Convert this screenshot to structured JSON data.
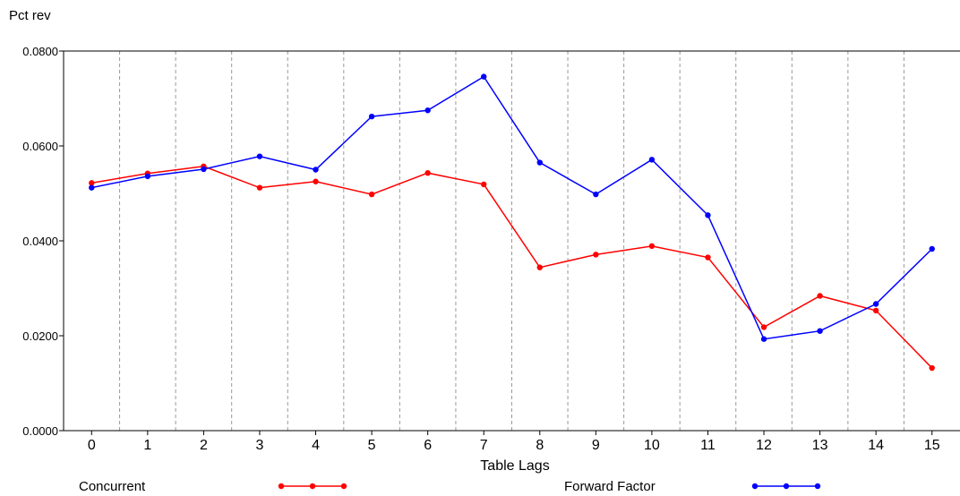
{
  "chart_data": {
    "type": "line",
    "title": "",
    "ylabel": "Pct rev",
    "xlabel": "Table Lags",
    "categories": [
      "0",
      "1",
      "2",
      "3",
      "4",
      "5",
      "6",
      "7",
      "8",
      "9",
      "10",
      "11",
      "12",
      "13",
      "14",
      "15"
    ],
    "ylim": [
      0,
      0.08
    ],
    "yticks": [
      "0.0000",
      "0.0200",
      "0.0400",
      "0.0600",
      "0.0800"
    ],
    "ytick_values": [
      0,
      0.02,
      0.04,
      0.06,
      0.08
    ],
    "grid": "vertical dashed",
    "legend_position": "bottom",
    "series": [
      {
        "name": "Concurrent",
        "color": "#ff0000",
        "values": [
          0.0522,
          0.0542,
          0.0557,
          0.0512,
          0.0525,
          0.0498,
          0.0543,
          0.0519,
          0.0344,
          0.0371,
          0.0389,
          0.0365,
          0.0218,
          0.0284,
          0.0253,
          0.0132
        ]
      },
      {
        "name": "Forward Factor",
        "color": "#0000ff",
        "values": [
          0.0512,
          0.0536,
          0.0551,
          0.0578,
          0.055,
          0.0662,
          0.0675,
          0.0746,
          0.0565,
          0.0498,
          0.0571,
          0.0454,
          0.0193,
          0.021,
          0.0267,
          0.0383
        ]
      }
    ]
  }
}
